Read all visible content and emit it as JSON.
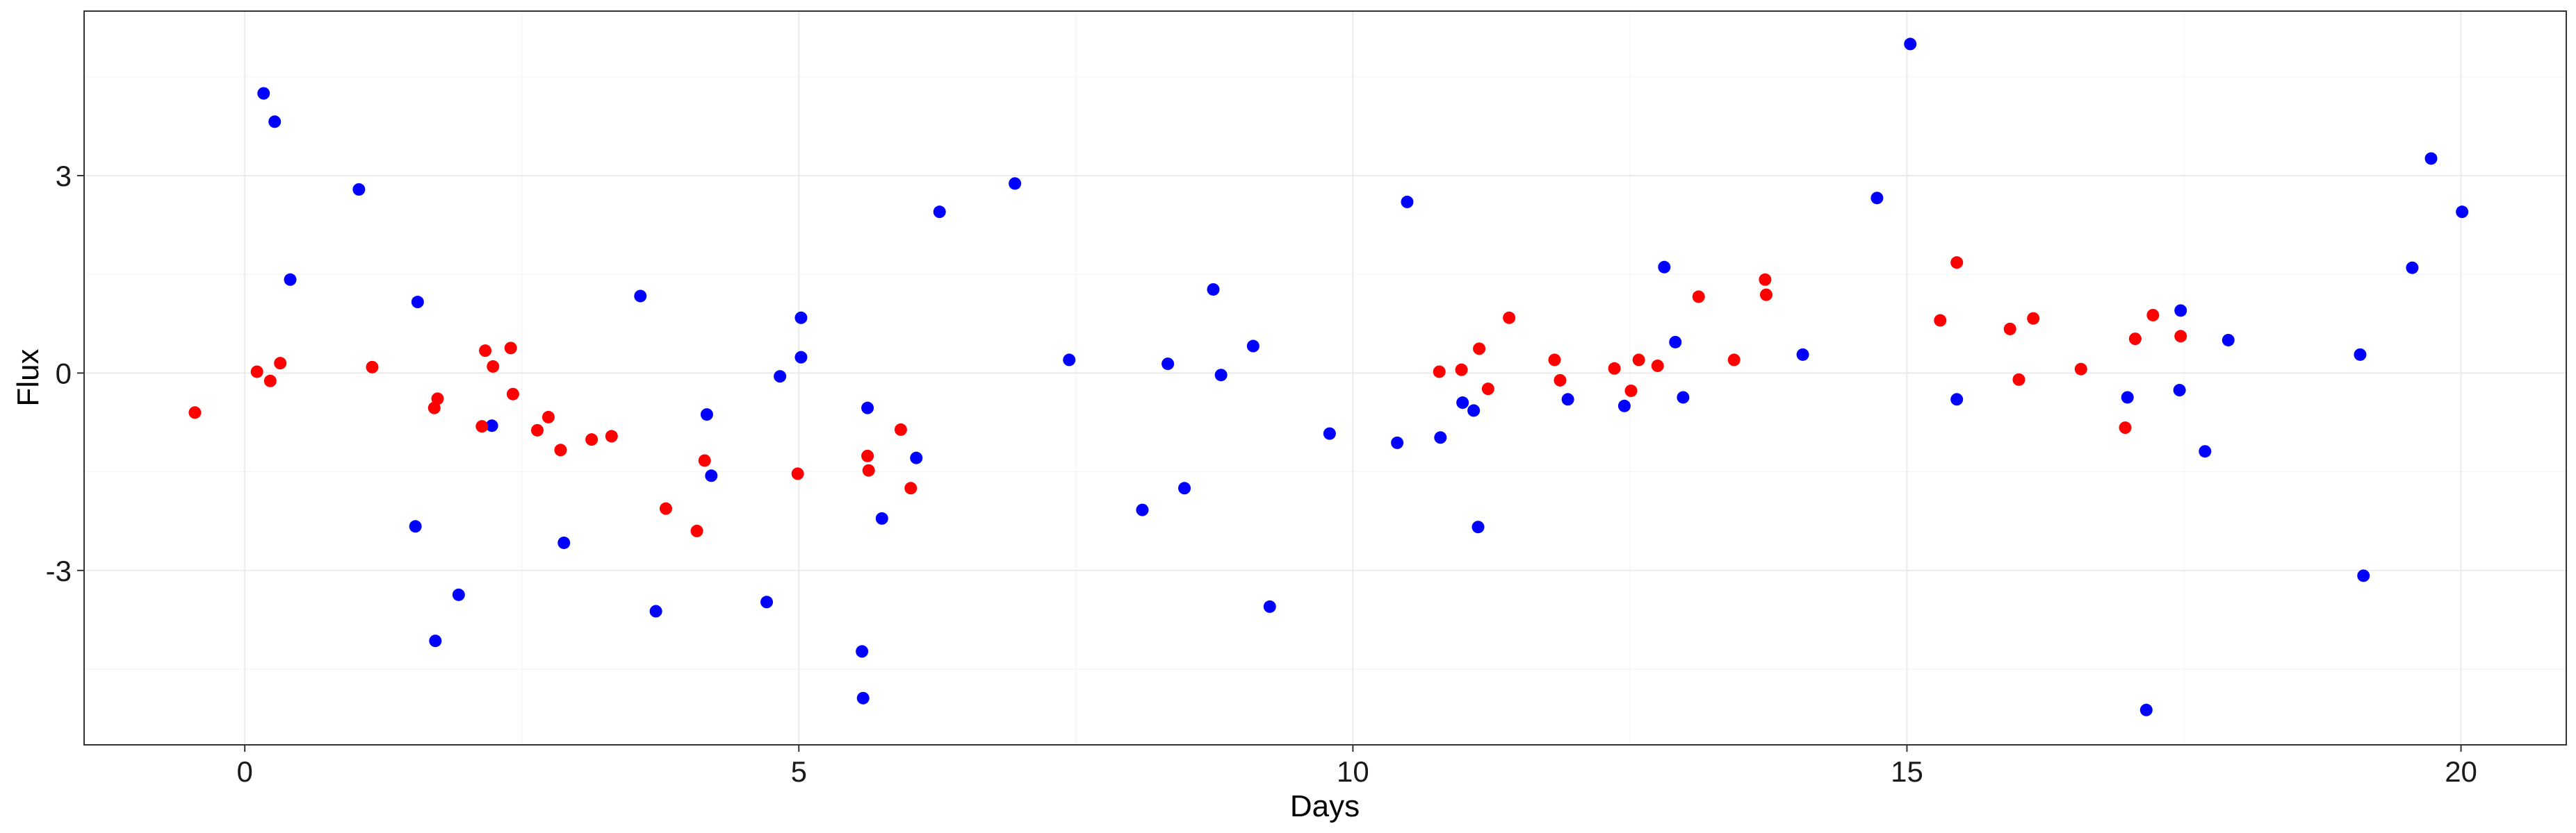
{
  "chart_data": {
    "type": "scatter",
    "title": "",
    "xlabel": "Days",
    "ylabel": "Flux",
    "xlim": [
      -1.45,
      20.95
    ],
    "ylim": [
      -5.65,
      5.5
    ],
    "x_ticks": [
      {
        "value": 0,
        "label": "0"
      },
      {
        "value": 5,
        "label": "5"
      },
      {
        "value": 10,
        "label": "10"
      },
      {
        "value": 15,
        "label": "15"
      },
      {
        "value": 20,
        "label": "20"
      }
    ],
    "y_ticks": [
      {
        "value": -3,
        "label": "-3"
      },
      {
        "value": 0,
        "label": "0"
      },
      {
        "value": 3,
        "label": "3"
      }
    ],
    "grid": true,
    "legend": "none",
    "series": [
      {
        "color": "#0000FF",
        "points": [
          [
            0.17,
            4.25
          ],
          [
            0.27,
            3.82
          ],
          [
            0.41,
            1.42
          ],
          [
            1.03,
            2.79
          ],
          [
            1.56,
            1.08
          ],
          [
            1.54,
            -2.33
          ],
          [
            1.72,
            -4.07
          ],
          [
            1.93,
            -3.37
          ],
          [
            2.23,
            -0.8
          ],
          [
            2.88,
            -2.58
          ],
          [
            3.57,
            1.17
          ],
          [
            3.71,
            -3.62
          ],
          [
            4.17,
            -0.63
          ],
          [
            4.21,
            -1.56
          ],
          [
            4.71,
            -3.48
          ],
          [
            4.83,
            -0.05
          ],
          [
            5.02,
            0.84
          ],
          [
            5.02,
            0.24
          ],
          [
            5.57,
            -4.23
          ],
          [
            5.58,
            -4.94
          ],
          [
            5.62,
            -0.53
          ],
          [
            5.75,
            -2.21
          ],
          [
            6.06,
            -1.29
          ],
          [
            6.27,
            2.45
          ],
          [
            6.95,
            2.88
          ],
          [
            7.44,
            0.2
          ],
          [
            8.1,
            -2.08
          ],
          [
            8.33,
            0.14
          ],
          [
            8.48,
            -1.75
          ],
          [
            8.74,
            1.27
          ],
          [
            8.81,
            -0.03
          ],
          [
            9.1,
            0.41
          ],
          [
            9.25,
            -3.55
          ],
          [
            9.79,
            -0.92
          ],
          [
            10.4,
            -1.06
          ],
          [
            10.49,
            2.6
          ],
          [
            10.79,
            -0.98
          ],
          [
            10.99,
            -0.45
          ],
          [
            11.09,
            -0.57
          ],
          [
            11.13,
            -2.34
          ],
          [
            11.94,
            -0.4
          ],
          [
            12.45,
            -0.5
          ],
          [
            12.81,
            1.61
          ],
          [
            12.91,
            0.47
          ],
          [
            12.98,
            -0.37
          ],
          [
            14.06,
            0.28
          ],
          [
            14.73,
            2.66
          ],
          [
            15.03,
            5.0
          ],
          [
            15.45,
            -0.4
          ],
          [
            16.99,
            -0.37
          ],
          [
            17.16,
            -5.12
          ],
          [
            17.46,
            -0.26
          ],
          [
            17.47,
            0.95
          ],
          [
            17.69,
            -1.19
          ],
          [
            17.9,
            0.5
          ],
          [
            19.09,
            0.28
          ],
          [
            19.12,
            -3.08
          ],
          [
            19.56,
            1.6
          ],
          [
            19.73,
            3.26
          ],
          [
            20.01,
            2.45
          ]
        ]
      },
      {
        "color": "#FF0000",
        "points": [
          [
            -0.45,
            -0.6
          ],
          [
            0.11,
            0.02
          ],
          [
            0.23,
            -0.12
          ],
          [
            0.32,
            0.15
          ],
          [
            1.15,
            0.09
          ],
          [
            1.71,
            -0.53
          ],
          [
            1.74,
            -0.39
          ],
          [
            2.14,
            -0.81
          ],
          [
            2.17,
            0.34
          ],
          [
            2.24,
            0.1
          ],
          [
            2.4,
            0.38
          ],
          [
            2.42,
            -0.32
          ],
          [
            2.64,
            -0.87
          ],
          [
            2.74,
            -0.67
          ],
          [
            2.85,
            -1.17
          ],
          [
            3.13,
            -1.01
          ],
          [
            3.31,
            -0.96
          ],
          [
            3.8,
            -2.06
          ],
          [
            4.08,
            -2.4
          ],
          [
            4.15,
            -1.33
          ],
          [
            4.99,
            -1.53
          ],
          [
            5.62,
            -1.26
          ],
          [
            5.63,
            -1.48
          ],
          [
            5.92,
            -0.86
          ],
          [
            6.01,
            -1.75
          ],
          [
            10.78,
            0.02
          ],
          [
            10.98,
            0.05
          ],
          [
            11.14,
            0.37
          ],
          [
            11.22,
            -0.24
          ],
          [
            11.41,
            0.84
          ],
          [
            11.82,
            0.2
          ],
          [
            11.87,
            -0.11
          ],
          [
            12.36,
            0.07
          ],
          [
            12.51,
            -0.27
          ],
          [
            12.58,
            0.2
          ],
          [
            12.75,
            0.11
          ],
          [
            13.12,
            1.16
          ],
          [
            13.44,
            0.2
          ],
          [
            13.72,
            1.42
          ],
          [
            13.73,
            1.19
          ],
          [
            15.3,
            0.8
          ],
          [
            15.45,
            1.68
          ],
          [
            15.93,
            0.67
          ],
          [
            16.01,
            -0.1
          ],
          [
            16.14,
            0.83
          ],
          [
            16.57,
            0.06
          ],
          [
            16.97,
            -0.83
          ],
          [
            17.06,
            0.52
          ],
          [
            17.22,
            0.88
          ],
          [
            17.47,
            0.56
          ]
        ]
      }
    ]
  }
}
